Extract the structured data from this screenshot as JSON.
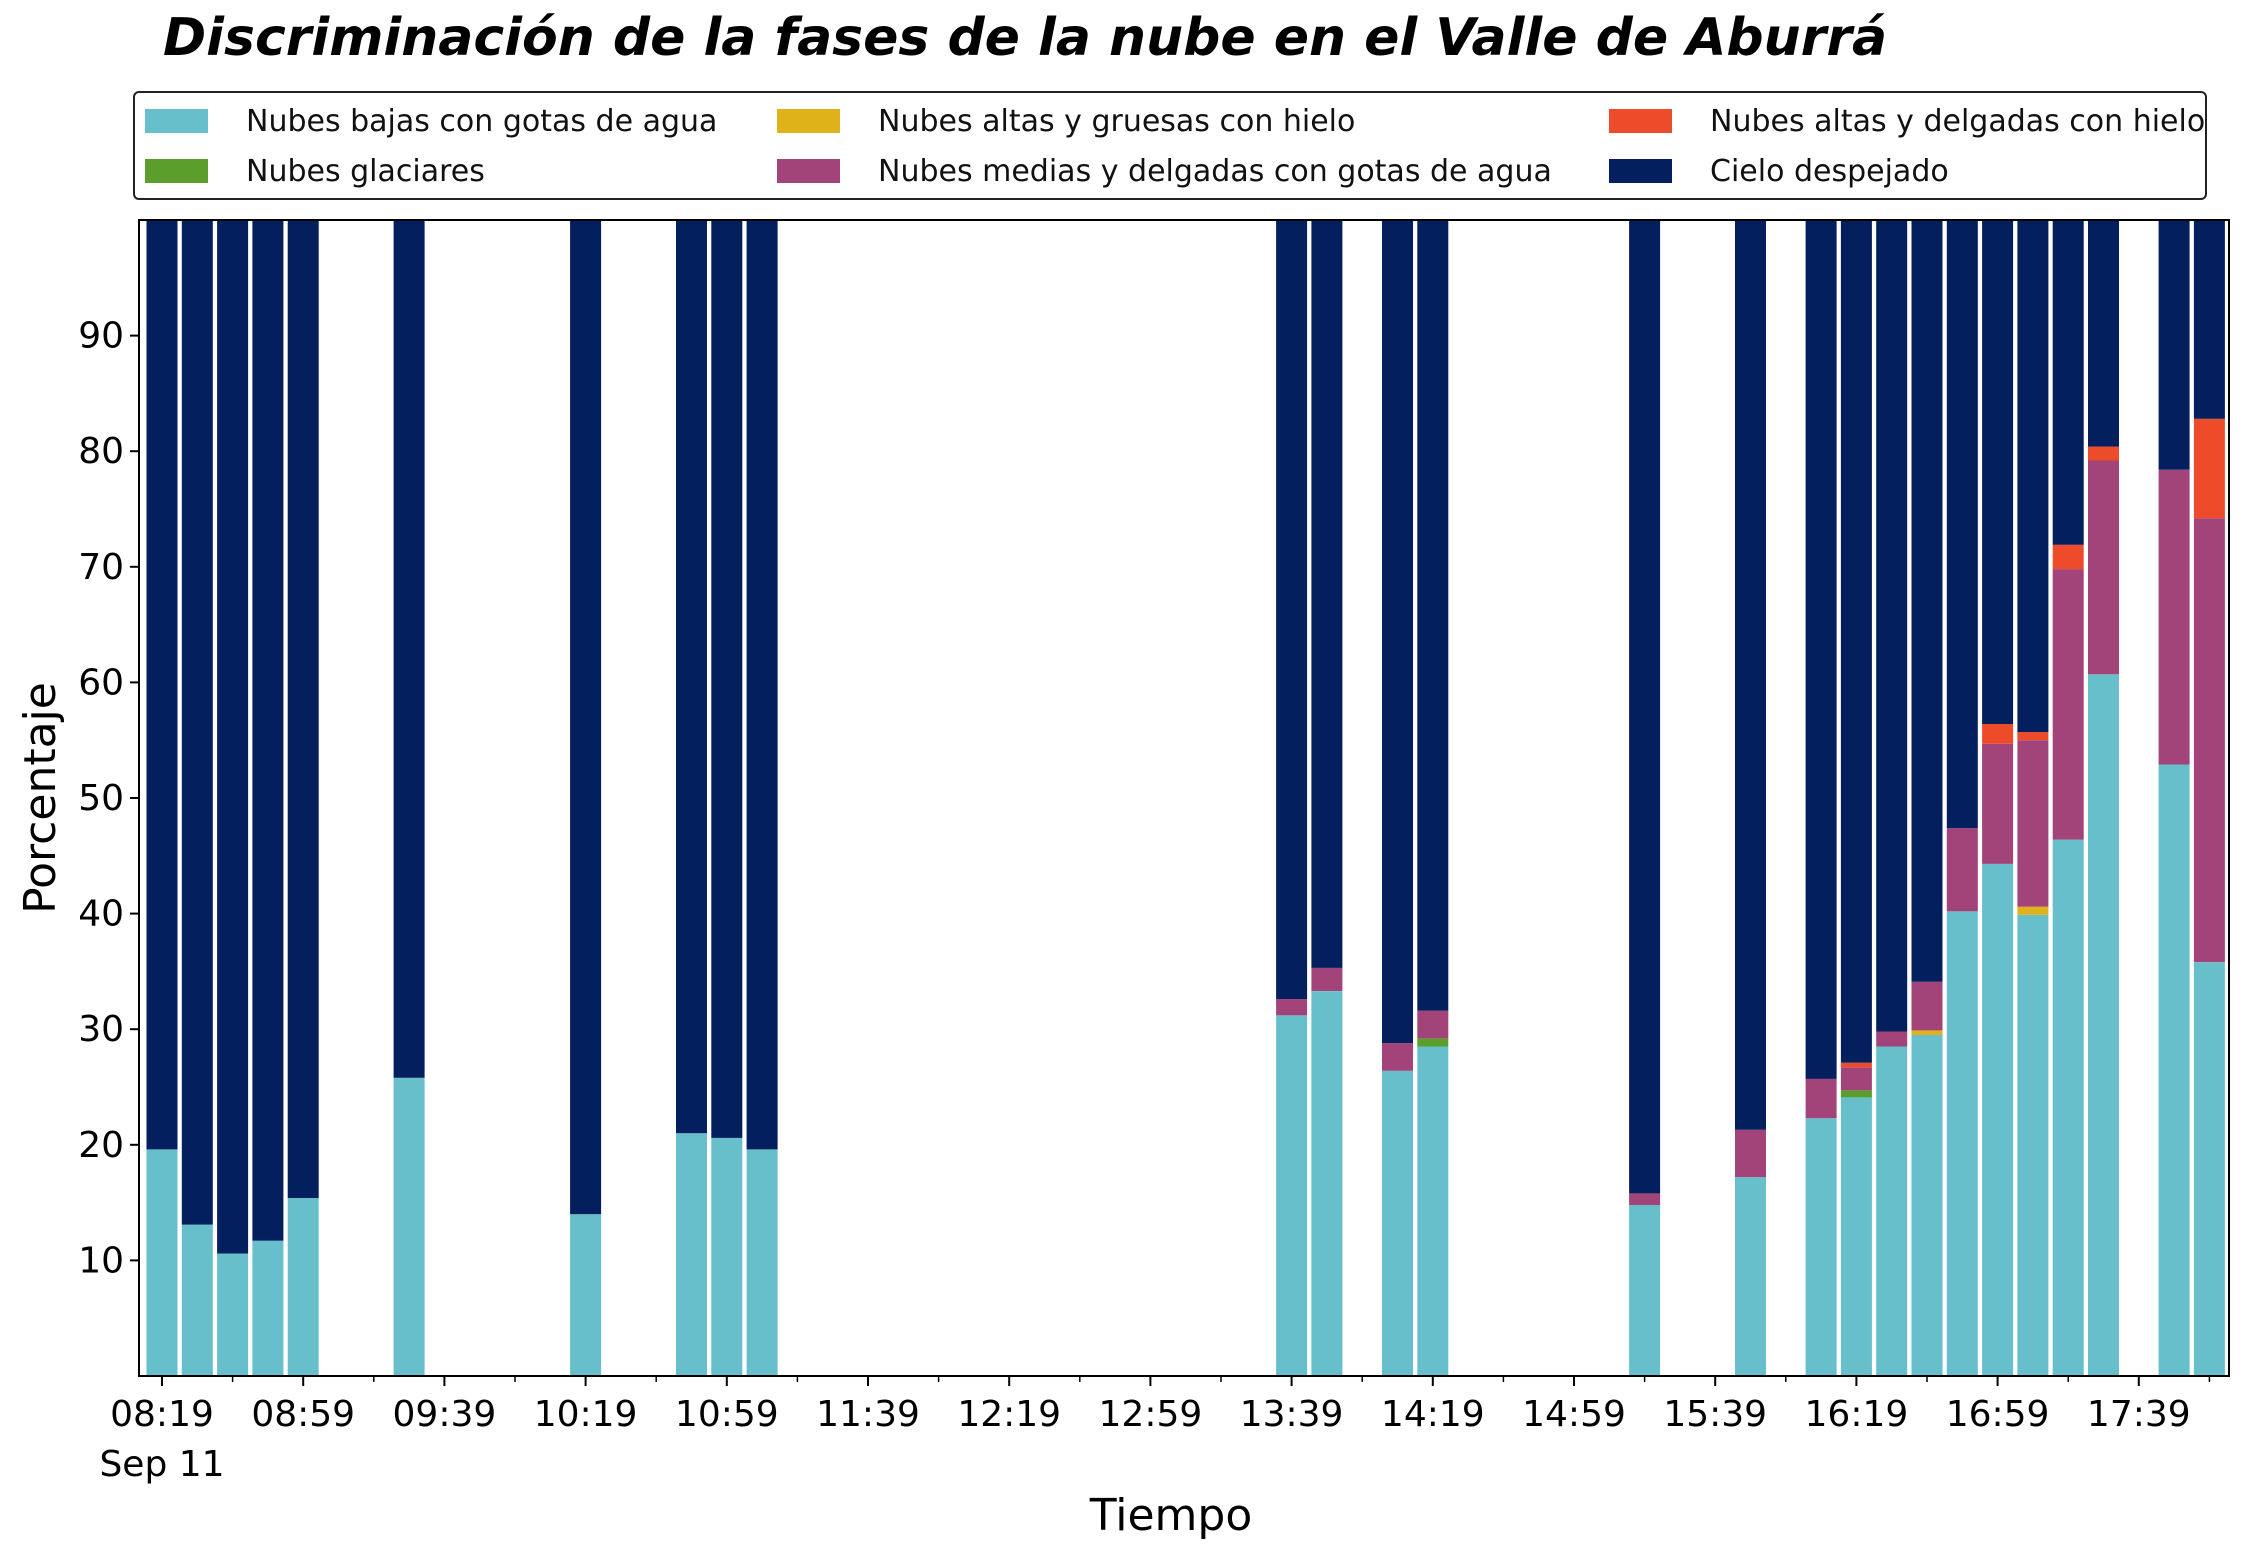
{
  "chart_data": {
    "type": "bar",
    "stacked": true,
    "title": "Discriminación de la fases de la nube en el Valle de Aburrá",
    "xlabel": "Tiempo",
    "ylabel": "Porcentaje",
    "ylim": [
      0,
      100
    ],
    "y_ticks": [
      10,
      20,
      30,
      40,
      50,
      60,
      70,
      80,
      90
    ],
    "x_tick_labels": [
      "08:19",
      "08:59",
      "09:39",
      "10:19",
      "10:59",
      "11:39",
      "12:19",
      "12:59",
      "13:39",
      "14:19",
      "14:59",
      "15:39",
      "16:19",
      "16:59",
      "17:39"
    ],
    "x_date_label": "Sep 11",
    "legend_placement": "top",
    "grid": false,
    "categories": [
      "08:19",
      "08:29",
      "08:39",
      "08:49",
      "08:59",
      "09:29",
      "10:19",
      "10:49",
      "10:59",
      "11:09",
      "13:39",
      "13:49",
      "14:09",
      "14:19",
      "15:19",
      "15:49",
      "16:09",
      "16:19",
      "16:29",
      "16:39",
      "16:49",
      "16:59",
      "17:09",
      "17:19",
      "17:29",
      "17:49",
      "17:59"
    ],
    "series": [
      {
        "name": "Nubes bajas con gotas de agua",
        "color": "#66bfca",
        "values": [
          19.6,
          13.1,
          10.6,
          11.7,
          15.4,
          25.8,
          14.0,
          21.0,
          20.6,
          19.6,
          31.2,
          33.3,
          26.4,
          28.5,
          14.8,
          17.2,
          22.3,
          24.1,
          28.5,
          29.5,
          40.2,
          44.3,
          39.9,
          46.4,
          60.7,
          52.9,
          35.8
        ]
      },
      {
        "name": "Nubes glaciares",
        "color": "#5c9e2c",
        "values": [
          0,
          0,
          0,
          0,
          0,
          0,
          0,
          0,
          0,
          0,
          0,
          0,
          0,
          0.7,
          0,
          0,
          0,
          0.6,
          0,
          0,
          0,
          0,
          0,
          0,
          0,
          0,
          0
        ]
      },
      {
        "name": "Nubes altas y gruesas con hielo",
        "color": "#e0b21a",
        "values": [
          0,
          0,
          0,
          0,
          0,
          0,
          0,
          0,
          0,
          0,
          0,
          0,
          0,
          0,
          0,
          0,
          0,
          0,
          0,
          0.4,
          0,
          0,
          0.7,
          0,
          0,
          0,
          0
        ]
      },
      {
        "name": "Nubes medias y delgadas con gotas de agua",
        "color": "#a24479",
        "values": [
          0,
          0,
          0,
          0,
          0,
          0,
          0,
          0,
          0,
          0,
          1.4,
          2.0,
          2.4,
          2.4,
          1.0,
          4.1,
          3.4,
          2.0,
          1.3,
          4.2,
          7.2,
          10.4,
          14.4,
          23.4,
          18.5,
          25.5,
          38.4
        ]
      },
      {
        "name": "Nubes altas y delgadas con hielo",
        "color": "#ee4b2b",
        "values": [
          0,
          0,
          0,
          0,
          0,
          0,
          0,
          0,
          0,
          0,
          0,
          0,
          0,
          0,
          0,
          0,
          0,
          0.4,
          0,
          0,
          0,
          1.7,
          0.7,
          2.1,
          1.2,
          0,
          8.6
        ]
      },
      {
        "name": "Cielo despejado",
        "color": "#041f5e",
        "values": [
          80.4,
          86.9,
          89.4,
          88.3,
          84.6,
          74.2,
          86.0,
          79.0,
          79.4,
          80.4,
          67.4,
          64.7,
          71.2,
          68.4,
          84.2,
          78.7,
          74.3,
          72.9,
          70.2,
          65.9,
          52.6,
          43.6,
          44.3,
          28.1,
          19.6,
          21.6,
          17.2
        ]
      }
    ]
  }
}
